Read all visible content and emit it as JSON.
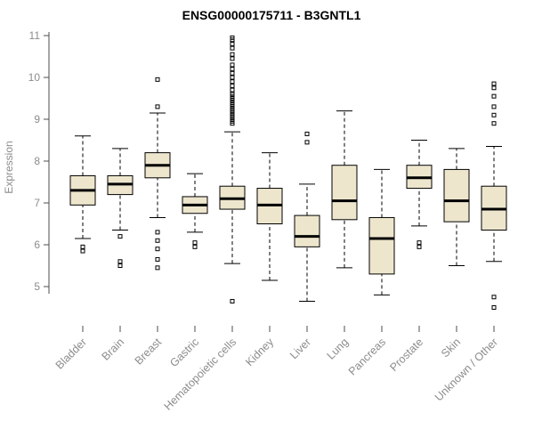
{
  "title": "ENSG00000175711 - B3GNTL1",
  "colors": {
    "box_fill": "#ede6cd",
    "box_stroke": "#000000",
    "median": "#000000",
    "whisker": "#000000",
    "axis_line": "#4d4d4d",
    "axis_text": "#8c8c8c",
    "outlier_stroke": "#000000",
    "background": "#ffffff"
  },
  "chart_data": {
    "type": "boxplot",
    "title": "ENSG00000175711 - B3GNTL1",
    "xlabel": "",
    "ylabel": "Expression",
    "ylim": [
      4.3,
      11
    ],
    "yticks": [
      5,
      6,
      7,
      8,
      9,
      10,
      11
    ],
    "grid": false,
    "legend": "none",
    "categories": [
      "Bladder",
      "Brain",
      "Breast",
      "Gastric",
      "Hematopoietic cells",
      "Kidney",
      "Liver",
      "Lung",
      "Pancreas",
      "Prostate",
      "Skin",
      "Unknown / Other"
    ],
    "series": [
      {
        "name": "Bladder",
        "low": 6.15,
        "q1": 6.95,
        "median": 7.3,
        "q3": 7.65,
        "high": 8.6,
        "outliers": [
          5.95,
          5.85
        ]
      },
      {
        "name": "Brain",
        "low": 6.35,
        "q1": 7.2,
        "median": 7.45,
        "q3": 7.65,
        "high": 8.3,
        "outliers": [
          6.2,
          5.6,
          5.5
        ]
      },
      {
        "name": "Breast",
        "low": 6.65,
        "q1": 7.6,
        "median": 7.9,
        "q3": 8.2,
        "high": 9.15,
        "outliers": [
          9.95,
          9.3,
          6.3,
          6.1,
          5.9,
          5.65,
          5.45
        ]
      },
      {
        "name": "Gastric",
        "low": 6.3,
        "q1": 6.75,
        "median": 6.95,
        "q3": 7.15,
        "high": 7.7,
        "outliers": [
          6.05,
          5.95
        ]
      },
      {
        "name": "Hematopoietic cells",
        "low": 5.55,
        "q1": 6.85,
        "median": 7.1,
        "q3": 7.4,
        "high": 8.7,
        "outliers": [
          10.95,
          10.9,
          10.8,
          10.7,
          10.55,
          10.45,
          10.3,
          10.2,
          10.1,
          10.0,
          9.9,
          9.8,
          9.7,
          9.6,
          9.55,
          9.5,
          9.45,
          9.4,
          9.35,
          9.3,
          9.25,
          9.2,
          9.15,
          9.1,
          9.05,
          9.0,
          8.95,
          8.9,
          4.65
        ]
      },
      {
        "name": "Kidney",
        "low": 5.15,
        "q1": 6.5,
        "median": 6.95,
        "q3": 7.35,
        "high": 8.2,
        "outliers": []
      },
      {
        "name": "Liver",
        "low": 4.65,
        "q1": 5.95,
        "median": 6.2,
        "q3": 6.7,
        "high": 7.45,
        "outliers": [
          8.65,
          8.45
        ]
      },
      {
        "name": "Lung",
        "low": 5.45,
        "q1": 6.6,
        "median": 7.05,
        "q3": 7.9,
        "high": 9.2,
        "outliers": []
      },
      {
        "name": "Pancreas",
        "low": 4.8,
        "q1": 5.3,
        "median": 6.15,
        "q3": 6.65,
        "high": 7.8,
        "outliers": []
      },
      {
        "name": "Prostate",
        "low": 6.45,
        "q1": 7.35,
        "median": 7.6,
        "q3": 7.9,
        "high": 8.5,
        "outliers": [
          6.05,
          5.95
        ]
      },
      {
        "name": "Skin",
        "low": 5.5,
        "q1": 6.55,
        "median": 7.05,
        "q3": 7.8,
        "high": 8.3,
        "outliers": []
      },
      {
        "name": "Unknown / Other",
        "low": 5.6,
        "q1": 6.35,
        "median": 6.85,
        "q3": 7.4,
        "high": 8.35,
        "outliers": [
          9.85,
          9.75,
          9.55,
          9.3,
          9.1,
          8.9,
          4.75,
          4.5
        ]
      }
    ]
  }
}
